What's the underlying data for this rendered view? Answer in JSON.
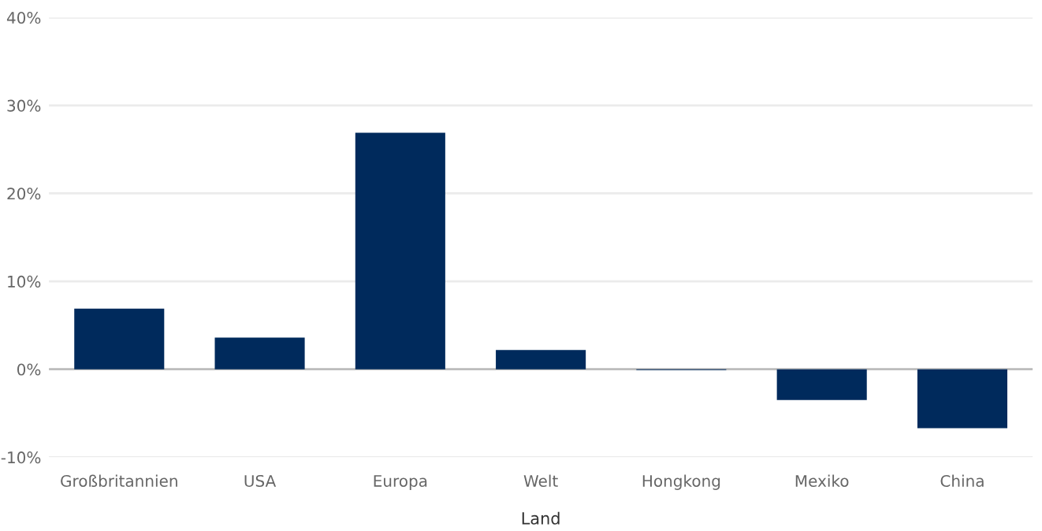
{
  "chart_data": {
    "type": "bar",
    "xlabel": "Land",
    "categories": [
      "Großbritannien",
      "USA",
      "Europa",
      "Welt",
      "Hongkong",
      "Mexiko",
      "China"
    ],
    "values": [
      6.9,
      3.6,
      26.9,
      2.2,
      -0.1,
      -3.5,
      -6.7
    ],
    "color": "#002a5c",
    "ylim": [
      -10,
      40
    ],
    "yticks": [
      {
        "value": -10,
        "label": "-10%"
      },
      {
        "value": 0,
        "label": "0%"
      },
      {
        "value": 10,
        "label": "10%"
      },
      {
        "value": 20,
        "label": "20%"
      },
      {
        "value": 30,
        "label": "30%"
      },
      {
        "value": 40,
        "label": "40%"
      }
    ],
    "grid": "y"
  }
}
